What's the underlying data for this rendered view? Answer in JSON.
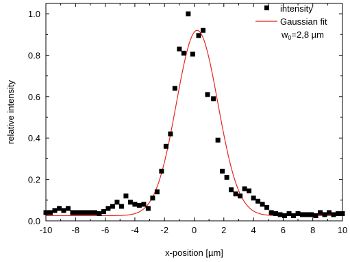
{
  "chart_data": {
    "type": "scatter",
    "xlabel": "x-position [µm]",
    "ylabel": "relative intensity",
    "xlim": [
      -10,
      10
    ],
    "ylim": [
      0,
      1.05
    ],
    "xticks": [
      "-10",
      "-8",
      "-6",
      "-4",
      "-2",
      "0",
      "2",
      "4",
      "6",
      "8",
      "10"
    ],
    "yticks": [
      "0.0",
      "0.2",
      "0.4",
      "0.6",
      "0.8",
      "1.0"
    ],
    "legend_position": "top-right",
    "legend": {
      "points": "intensity",
      "fit": "Gaussian fit",
      "fit_note_prefix": "w",
      "fit_note_sub": "0",
      "fit_note_suffix": "=2,8 µm"
    },
    "series": [
      {
        "name": "intensity",
        "kind": "points",
        "color": "#000000",
        "x": [
          -10.0,
          -9.7,
          -9.4,
          -9.1,
          -8.8,
          -8.5,
          -8.2,
          -7.9,
          -7.6,
          -7.3,
          -7.0,
          -6.7,
          -6.4,
          -6.1,
          -5.8,
          -5.5,
          -5.2,
          -4.9,
          -4.6,
          -4.3,
          -4.0,
          -3.7,
          -3.4,
          -3.1,
          -2.8,
          -2.5,
          -2.2,
          -1.9,
          -1.6,
          -1.3,
          -1.0,
          -0.7,
          -0.4,
          -0.1,
          0.3,
          0.6,
          0.9,
          1.3,
          1.6,
          1.9,
          2.2,
          2.5,
          2.8,
          3.1,
          3.4,
          3.7,
          4.0,
          4.3,
          4.6,
          4.9,
          5.2,
          5.5,
          5.8,
          6.1,
          6.4,
          6.7,
          7.0,
          7.3,
          7.6,
          7.9,
          8.2,
          8.5,
          8.8,
          9.1,
          9.4,
          9.7,
          10.0
        ],
        "y": [
          0.04,
          0.04,
          0.05,
          0.06,
          0.05,
          0.06,
          0.04,
          0.04,
          0.04,
          0.04,
          0.04,
          0.04,
          0.035,
          0.045,
          0.06,
          0.07,
          0.09,
          0.07,
          0.12,
          0.09,
          0.08,
          0.075,
          0.08,
          0.06,
          0.11,
          0.14,
          0.24,
          0.36,
          0.42,
          0.64,
          0.83,
          0.81,
          1.0,
          0.805,
          0.895,
          0.92,
          0.61,
          0.59,
          0.39,
          0.24,
          0.21,
          0.15,
          0.13,
          0.12,
          0.155,
          0.145,
          0.11,
          0.095,
          0.08,
          0.065,
          0.04,
          0.035,
          0.03,
          0.025,
          0.035,
          0.025,
          0.035,
          0.03,
          0.03,
          0.03,
          0.025,
          0.04,
          0.03,
          0.04,
          0.03,
          0.035,
          0.035
        ]
      },
      {
        "name": "Gaussian fit",
        "kind": "curve",
        "color": "#e8251e",
        "amplitude": 0.895,
        "center": 0.2,
        "w0": 2.8,
        "offset": 0.025
      }
    ]
  }
}
